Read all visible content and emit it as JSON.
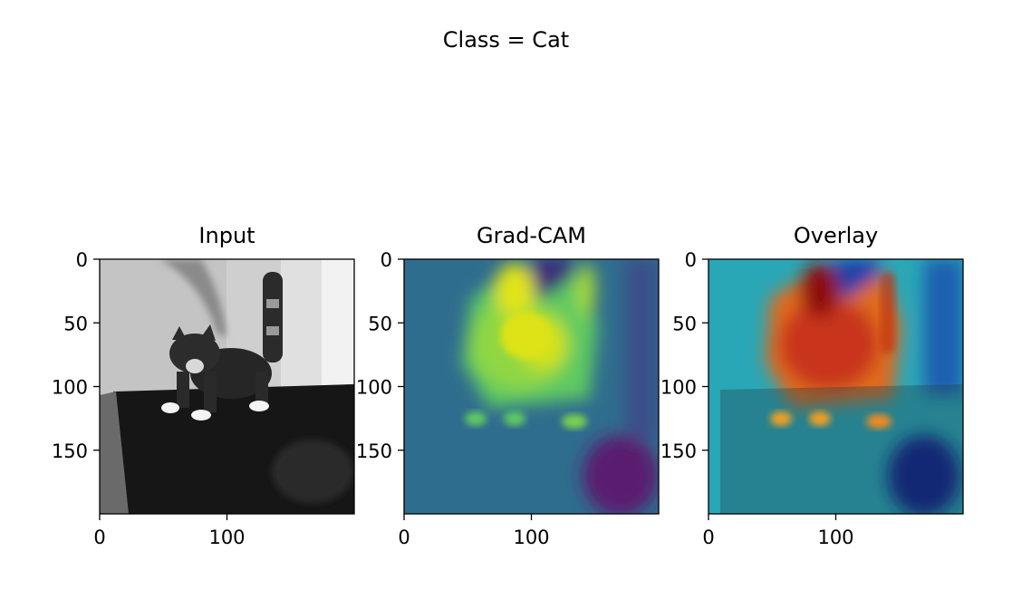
{
  "chart_data": [
    {
      "type": "heatmap",
      "suptitle": "Class = Cat",
      "panels": [
        {
          "id": "input",
          "title": "Input",
          "colormap": "gray",
          "xlim": [
            0,
            200
          ],
          "ylim": [
            0,
            200
          ],
          "xticks": [
            0,
            100
          ],
          "xtick_labels": [
            "0",
            "100"
          ],
          "yticks": [
            0,
            50,
            100,
            150
          ],
          "ytick_labels": [
            "0",
            "50",
            "100",
            "150"
          ]
        },
        {
          "id": "gradcam",
          "title": "Grad-CAM",
          "colormap": "viridis",
          "xlim": [
            0,
            200
          ],
          "ylim": [
            0,
            200
          ],
          "xticks": [
            0,
            100
          ],
          "xtick_labels": [
            "0",
            "100"
          ],
          "yticks": [
            0,
            50,
            100,
            150
          ],
          "ytick_labels": [
            "0",
            "50",
            "100",
            "150"
          ]
        },
        {
          "id": "overlay",
          "title": "Overlay",
          "colormap": "jet",
          "xlim": [
            0,
            200
          ],
          "ylim": [
            0,
            200
          ],
          "xticks": [
            0,
            100
          ],
          "xtick_labels": [
            "0",
            "100"
          ],
          "yticks": [
            0,
            50,
            100,
            150
          ],
          "ytick_labels": [
            "0",
            "50",
            "100",
            "150"
          ]
        }
      ]
    }
  ]
}
